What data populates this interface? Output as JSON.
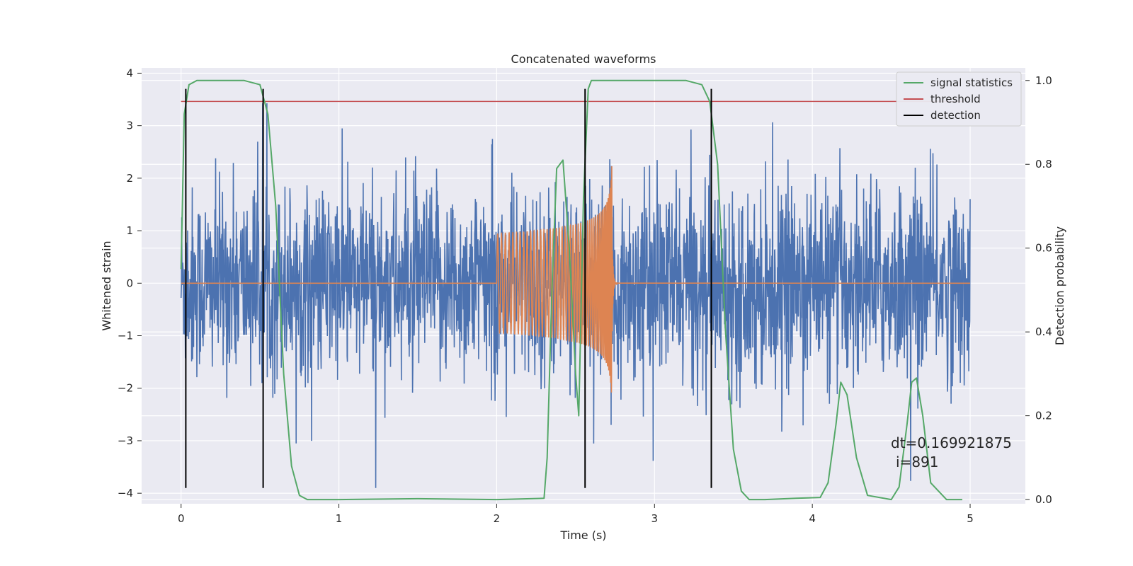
{
  "chart_data": {
    "type": "line",
    "title": "Concatenated waveforms",
    "xlabel": "Time (s)",
    "ylabel_left": "Whitened strain",
    "ylabel_right": "Detection probability",
    "xlim": [
      -0.25,
      5.35
    ],
    "ylim_left": [
      -4.2,
      4.1
    ],
    "ylim_right": [
      -0.01,
      1.03
    ],
    "x_ticks": [
      "0",
      "1",
      "2",
      "3",
      "4",
      "5"
    ],
    "y_left_ticks": [
      "−4",
      "−3",
      "−2",
      "−1",
      "0",
      "1",
      "2",
      "3",
      "4"
    ],
    "y_right_ticks": [
      "0.0",
      "0.2",
      "0.4",
      "0.6",
      "0.8",
      "1.0"
    ],
    "grid": true,
    "legend_position": "top-right",
    "colors": {
      "background": "#eaeaf2",
      "strain": "#4c72b0",
      "template": "#dd8452",
      "signal_statistics": "#55a868",
      "threshold": "#c44e52",
      "detection": "#000000"
    },
    "series": [
      {
        "name": "signal statistics",
        "axis": "right",
        "x": [
          0.0,
          0.02,
          0.05,
          0.1,
          0.2,
          0.4,
          0.5,
          0.55,
          0.6,
          0.65,
          0.7,
          0.75,
          0.8,
          1.0,
          1.5,
          2.0,
          2.3,
          2.32,
          2.35,
          2.38,
          2.42,
          2.46,
          2.5,
          2.52,
          2.55,
          2.58,
          2.6,
          2.65,
          2.7,
          3.2,
          3.3,
          3.35,
          3.4,
          3.45,
          3.5,
          3.55,
          3.6,
          3.7,
          3.9,
          4.05,
          4.1,
          4.15,
          4.18,
          4.22,
          4.28,
          4.35,
          4.5,
          4.55,
          4.6,
          4.63,
          4.66,
          4.7,
          4.75,
          4.85,
          4.95
        ],
        "values": [
          0.55,
          0.92,
          0.99,
          1.0,
          1.0,
          1.0,
          0.99,
          0.92,
          0.7,
          0.3,
          0.08,
          0.01,
          0.0,
          0.0,
          0.002,
          0.0,
          0.003,
          0.1,
          0.5,
          0.79,
          0.81,
          0.6,
          0.3,
          0.2,
          0.72,
          0.98,
          1.0,
          1.0,
          1.0,
          1.0,
          0.99,
          0.95,
          0.8,
          0.4,
          0.12,
          0.02,
          0.0,
          0.0,
          0.003,
          0.005,
          0.04,
          0.18,
          0.28,
          0.25,
          0.1,
          0.01,
          0.0,
          0.03,
          0.18,
          0.28,
          0.29,
          0.2,
          0.04,
          0.0,
          0.0
        ]
      },
      {
        "name": "threshold",
        "axis": "right",
        "x": [
          0.0,
          4.95
        ],
        "values": [
          0.95,
          0.95
        ]
      },
      {
        "name": "detection",
        "axis": "left",
        "type": "vlines",
        "x": [
          0.03,
          0.52,
          2.56,
          3.36
        ],
        "ymin": -3.9,
        "ymax": 3.7
      },
      {
        "name": "",
        "axis": "left",
        "type": "noise",
        "x_range": [
          0.0,
          5.0
        ],
        "amplitude": 1.2,
        "peak_range": [
          -3.9,
          3.7
        ]
      },
      {
        "name": "",
        "axis": "left",
        "type": "chirp",
        "x_range": [
          2.0,
          2.75
        ],
        "peak_amplitude": 2.4
      }
    ],
    "annotations": [
      "dt=0.169921875",
      "i=891"
    ]
  }
}
